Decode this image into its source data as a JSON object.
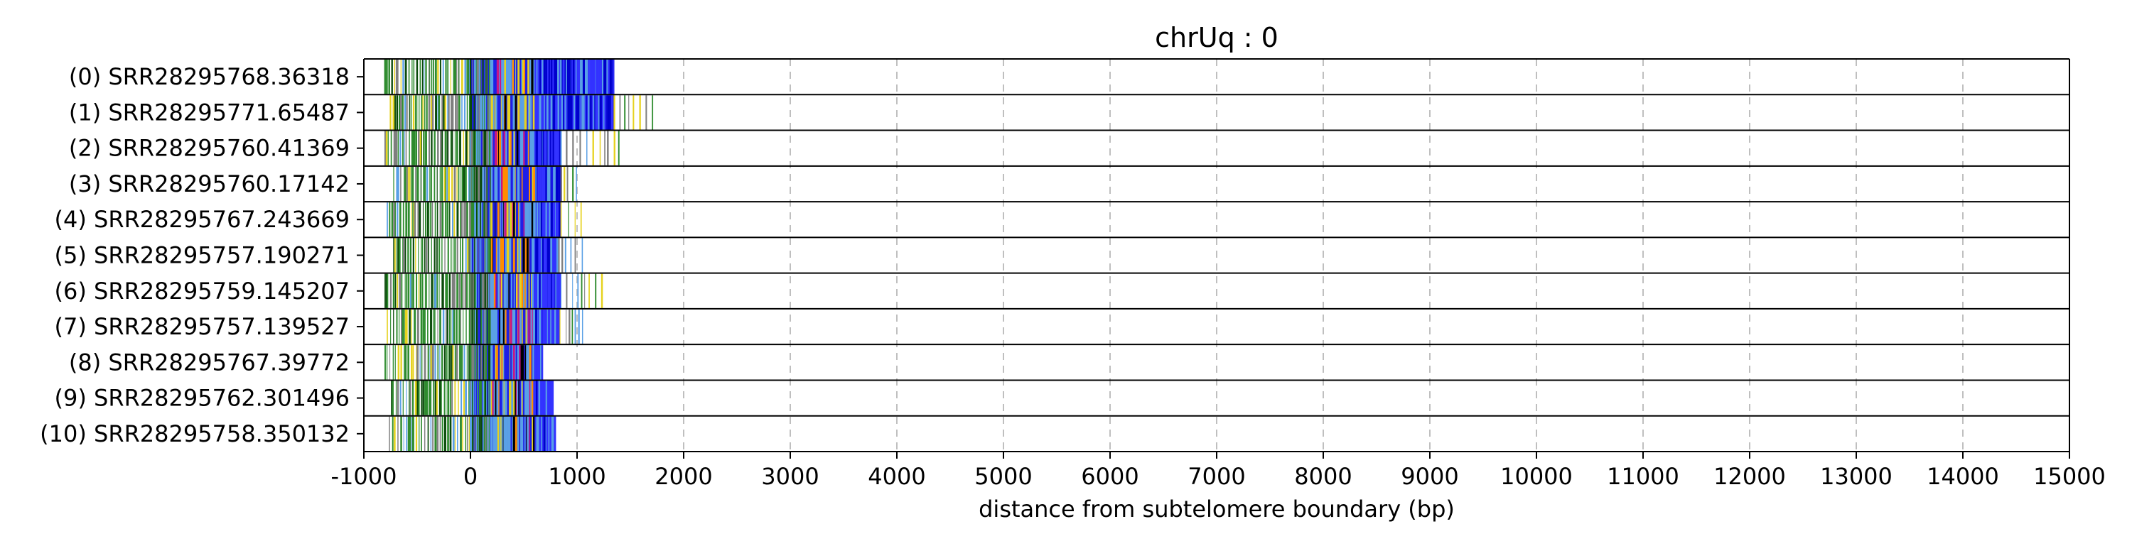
{
  "chart_data": {
    "type": "read-track-plot",
    "title": "chrUq : 0",
    "xlabel": "distance from subtelomere boundary (bp)",
    "xlim": [
      -1000,
      15000
    ],
    "xticks": [
      -1000,
      0,
      1000,
      2000,
      3000,
      4000,
      5000,
      6000,
      7000,
      8000,
      9000,
      10000,
      11000,
      12000,
      13000,
      14000,
      15000
    ],
    "grid": "vertical dashed",
    "reads": [
      {
        "label": "(0) SRR28295768.36318",
        "start": -800,
        "end": 1350
      },
      {
        "label": "(1) SRR28295771.65487",
        "start": -750,
        "end": 1750
      },
      {
        "label": "(2) SRR28295760.41369",
        "start": -800,
        "end": 1430
      },
      {
        "label": "(3) SRR28295760.17142",
        "start": -720,
        "end": 1000
      },
      {
        "label": "(4) SRR28295767.243669",
        "start": -780,
        "end": 1050
      },
      {
        "label": "(5) SRR28295757.190271",
        "start": -720,
        "end": 1050
      },
      {
        "label": "(6) SRR28295759.145207",
        "start": -800,
        "end": 1270
      },
      {
        "label": "(7) SRR28295757.139527",
        "start": -780,
        "end": 1070
      },
      {
        "label": "(8) SRR28295767.39772",
        "start": -800,
        "end": 680
      },
      {
        "label": "(9) SRR28295762.301496",
        "start": -740,
        "end": 780
      },
      {
        "label": "(10) SRR28295758.350132",
        "start": -760,
        "end": 800
      }
    ],
    "dense_blue_end": [
      1350,
      1350,
      850,
      850,
      850,
      830,
      850,
      840,
      680,
      780,
      800
    ],
    "colors": {
      "dense": "#1f1fe6",
      "lightblue": "#5aa0e6",
      "green": "#2e8b2e",
      "darkgreen": "#0a4a0a",
      "yellow": "#e6d21e",
      "orange": "#ff8c00",
      "magenta": "#c71585",
      "gray": "#7f7f7f",
      "grid": "#bfbfbf"
    }
  }
}
